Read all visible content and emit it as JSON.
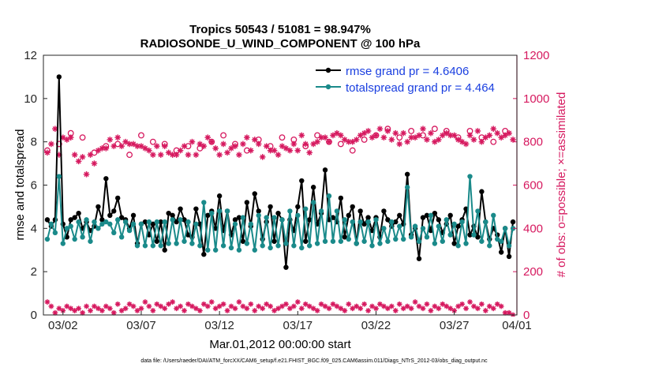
{
  "chart_data": {
    "type": "line",
    "title": "Tropics 50543 / 51081 = 98.947%",
    "subtitle": "RADIOSONDE_U_WIND_COMPONENT @ 100 hPa",
    "xlabel": "Mar.01,2012 00:00:00 start",
    "ylabel": "rmse and totalspread",
    "y2label": "# of obs: o=possible; ×=assimilated",
    "footer": "data file: /Users/raeder/DAI/ATM_forcXX/CAM6_setup/f.e21.FHIST_BGC.f09_025.CAM6assim.011/Diags_NTrS_2012-03/obs_diag_output.nc",
    "xlim": [
      0.75,
      31.0
    ],
    "ylim": [
      0,
      12
    ],
    "y2lim": [
      0,
      1200
    ],
    "xtick_positions": [
      2,
      7,
      12,
      17,
      22,
      27,
      32
    ],
    "xtick_labels": [
      "03/02",
      "03/07",
      "03/12",
      "03/17",
      "03/22",
      "03/27",
      "04/01"
    ],
    "ytick_labels": [
      "0",
      "2",
      "4",
      "6",
      "8",
      "10",
      "12"
    ],
    "y2tick_labels": [
      "0",
      "200",
      "400",
      "600",
      "800",
      "1000",
      "1200"
    ],
    "legend": [
      "rmse grand pr = 4.6406",
      "totalspread grand pr = 4.464"
    ],
    "colors": {
      "rmse": "#000000",
      "spread": "#1a8a8a",
      "obs": "#d6195f",
      "legend_text": "#1a3fe0"
    },
    "series": [
      {
        "name": "rmse",
        "x": [
          1.0,
          1.25,
          1.5,
          1.75,
          2.0,
          2.25,
          2.5,
          2.75,
          3.0,
          3.25,
          3.5,
          3.75,
          4.0,
          4.25,
          4.5,
          4.75,
          5.0,
          5.25,
          5.5,
          5.75,
          6.0,
          6.25,
          6.5,
          6.75,
          7.0,
          7.25,
          7.5,
          7.75,
          8.0,
          8.25,
          8.5,
          8.75,
          9.0,
          9.25,
          9.5,
          9.75,
          10.0,
          10.25,
          10.5,
          10.75,
          11.0,
          11.25,
          11.5,
          11.75,
          12.0,
          12.25,
          12.5,
          12.75,
          13.0,
          13.25,
          13.5,
          13.75,
          14.0,
          14.25,
          14.5,
          14.75,
          15.0,
          15.25,
          15.5,
          15.75,
          16.0,
          16.25,
          16.5,
          16.75,
          17.0,
          17.25,
          17.5,
          17.75,
          18.0,
          18.25,
          18.5,
          18.75,
          19.0,
          19.25,
          19.5,
          19.75,
          20.0,
          20.25,
          20.5,
          20.75,
          21.0,
          21.25,
          21.5,
          21.75,
          22.0,
          22.25,
          22.5,
          22.75,
          23.0,
          23.25,
          23.5,
          23.75,
          24.0,
          24.25,
          24.5,
          24.75,
          25.0,
          25.25,
          25.5,
          25.75,
          26.0,
          26.25,
          26.5,
          26.75,
          27.0,
          27.25,
          27.5,
          27.75,
          28.0,
          28.25,
          28.5,
          28.75,
          29.0,
          29.25,
          29.5,
          29.75,
          30.0,
          30.25,
          30.5,
          30.75
        ],
        "values": [
          4.4,
          4.1,
          4.4,
          11.0,
          4.2,
          3.6,
          4.4,
          4.5,
          4.7,
          4.0,
          4.3,
          3.9,
          4.1,
          5.0,
          4.4,
          6.3,
          4.6,
          4.8,
          5.4,
          4.5,
          4.4,
          4.0,
          4.6,
          3.3,
          4.2,
          4.3,
          3.7,
          4.2,
          3.4,
          4.3,
          3.0,
          4.7,
          4.6,
          4.3,
          4.9,
          4.4,
          3.7,
          3.6,
          4.9,
          4.2,
          2.8,
          4.6,
          4.8,
          4.0,
          5.5,
          3.9,
          4.8,
          3.7,
          4.4,
          4.5,
          3.4,
          5.2,
          4.1,
          5.6,
          4.8,
          3.5,
          4.3,
          5.0,
          3.4,
          4.7,
          4.4,
          2.2,
          4.4,
          3.9,
          5.0,
          6.2,
          3.4,
          4.4,
          5.9,
          4.2,
          4.7,
          6.7,
          4.4,
          4.5,
          4.3,
          5.4,
          3.6,
          4.6,
          5.0,
          3.3,
          4.8,
          4.2,
          4.5,
          3.9,
          4.5,
          3.6,
          4.8,
          4.4,
          4.1,
          4.3,
          4.6,
          4.2,
          6.5,
          3.7,
          4.0,
          2.6,
          4.5,
          4.6,
          3.9,
          4.7,
          4.4,
          3.8,
          4.2,
          4.6,
          3.3,
          4.1,
          4.4,
          4.9,
          3.7,
          4.1,
          3.6,
          5.7,
          4.3,
          3.5,
          4.0,
          3.7,
          2.9,
          4.0,
          2.7,
          4.3
        ]
      },
      {
        "name": "totalspread",
        "x": [
          1.0,
          1.25,
          1.5,
          1.75,
          2.0,
          2.25,
          2.5,
          2.75,
          3.0,
          3.25,
          3.5,
          3.75,
          4.0,
          4.25,
          4.5,
          4.75,
          5.0,
          5.25,
          5.5,
          5.75,
          6.0,
          6.25,
          6.5,
          6.75,
          7.0,
          7.25,
          7.5,
          7.75,
          8.0,
          8.25,
          8.5,
          8.75,
          9.0,
          9.25,
          9.5,
          9.75,
          10.0,
          10.25,
          10.5,
          10.75,
          11.0,
          11.25,
          11.5,
          11.75,
          12.0,
          12.25,
          12.5,
          12.75,
          13.0,
          13.25,
          13.5,
          13.75,
          14.0,
          14.25,
          14.5,
          14.75,
          15.0,
          15.25,
          15.5,
          15.75,
          16.0,
          16.25,
          16.5,
          16.75,
          17.0,
          17.25,
          17.5,
          17.75,
          18.0,
          18.25,
          18.5,
          18.75,
          19.0,
          19.25,
          19.5,
          19.75,
          20.0,
          20.25,
          20.5,
          20.75,
          21.0,
          21.25,
          21.5,
          21.75,
          22.0,
          22.25,
          22.5,
          22.75,
          23.0,
          23.25,
          23.5,
          23.75,
          24.0,
          24.25,
          24.5,
          24.75,
          25.0,
          25.25,
          25.5,
          25.75,
          26.0,
          26.25,
          26.5,
          26.75,
          27.0,
          27.25,
          27.5,
          27.75,
          28.0,
          28.25,
          28.5,
          28.75,
          29.0,
          29.25,
          29.5,
          29.75,
          30.0,
          30.25,
          30.5,
          30.75
        ],
        "values": [
          3.5,
          4.2,
          3.8,
          6.4,
          3.3,
          4.0,
          4.1,
          3.5,
          4.3,
          3.6,
          4.4,
          3.4,
          4.3,
          4.0,
          4.2,
          4.3,
          4.2,
          3.8,
          4.4,
          3.6,
          4.3,
          3.9,
          4.2,
          3.2,
          4.2,
          3.2,
          4.3,
          3.2,
          4.3,
          3.2,
          4.3,
          3.3,
          4.4,
          3.3,
          4.4,
          3.4,
          4.3,
          3.3,
          4.2,
          3.2,
          5.2,
          3.0,
          4.7,
          3.0,
          4.8,
          3.2,
          4.8,
          3.1,
          4.2,
          3.0,
          4.5,
          3.3,
          4.2,
          3.0,
          4.6,
          3.2,
          4.5,
          3.1,
          4.5,
          3.2,
          4.4,
          3.3,
          4.8,
          3.2,
          4.6,
          3.1,
          4.9,
          3.2,
          5.2,
          3.3,
          4.8,
          3.4,
          5.5,
          3.4,
          4.8,
          3.4,
          4.4,
          3.5,
          4.3,
          3.3,
          4.3,
          3.4,
          4.3,
          3.2,
          4.4,
          3.3,
          4.0,
          3.4,
          4.3,
          3.5,
          4.1,
          3.5,
          5.9,
          3.6,
          4.1,
          3.4,
          4.0,
          3.6,
          4.6,
          3.3,
          4.1,
          3.4,
          4.4,
          3.7,
          4.2,
          3.2,
          4.3,
          3.3,
          6.4,
          3.7,
          4.8,
          3.4,
          4.3,
          3.2,
          4.6,
          3.5,
          3.4,
          4.0,
          3.2,
          4.0
        ]
      },
      {
        "name": "obs possible",
        "x": [
          1.0,
          1.75,
          2.5,
          3.25,
          4.0,
          4.75,
          5.5,
          6.25,
          7.0,
          7.75,
          8.5,
          9.25,
          10.0,
          10.75,
          11.5,
          12.25,
          13.0,
          13.75,
          14.5,
          15.25,
          16.0,
          16.75,
          17.5,
          18.25,
          19.0,
          19.75,
          20.5,
          21.25,
          22.0,
          22.75,
          23.5,
          24.25,
          25.0,
          25.75,
          26.5,
          27.25,
          28.0,
          28.75,
          29.5,
          30.25
        ],
        "values": [
          760,
          790,
          840,
          820,
          750,
          780,
          790,
          740,
          830,
          800,
          790,
          760,
          780,
          770,
          800,
          830,
          790,
          760,
          810,
          780,
          820,
          810,
          780,
          830,
          800,
          790,
          760,
          810,
          830,
          860,
          820,
          850,
          830,
          860,
          850,
          820,
          850,
          820,
          800,
          850
        ]
      },
      {
        "name": "obs assimilated",
        "x": [
          1.0,
          1.25,
          1.5,
          1.75,
          2.0,
          2.25,
          2.5,
          2.75,
          3.0,
          3.25,
          3.5,
          3.75,
          4.0,
          4.25,
          4.5,
          4.75,
          5.0,
          5.25,
          5.5,
          5.75,
          6.0,
          6.25,
          6.5,
          6.75,
          7.0,
          7.25,
          7.5,
          7.75,
          8.0,
          8.25,
          8.5,
          8.75,
          9.0,
          9.25,
          9.5,
          9.75,
          10.0,
          10.25,
          10.5,
          10.75,
          11.0,
          11.25,
          11.5,
          11.75,
          12.0,
          12.25,
          12.5,
          12.75,
          13.0,
          13.25,
          13.5,
          13.75,
          14.0,
          14.25,
          14.5,
          14.75,
          15.0,
          15.25,
          15.5,
          15.75,
          16.0,
          16.25,
          16.5,
          16.75,
          17.0,
          17.25,
          17.5,
          17.75,
          18.0,
          18.25,
          18.5,
          18.75,
          19.0,
          19.25,
          19.5,
          19.75,
          20.0,
          20.25,
          20.5,
          20.75,
          21.0,
          21.25,
          21.5,
          21.75,
          22.0,
          22.25,
          22.5,
          22.75,
          23.0,
          23.25,
          23.5,
          23.75,
          24.0,
          24.25,
          24.5,
          24.75,
          25.0,
          25.25,
          25.5,
          25.75,
          26.0,
          26.25,
          26.5,
          26.75,
          27.0,
          27.25,
          27.5,
          27.75,
          28.0,
          28.25,
          28.5,
          28.75,
          29.0,
          29.25,
          29.5,
          29.75,
          30.0,
          30.25,
          30.5,
          30.75
        ],
        "values": [
          750,
          790,
          860,
          740,
          820,
          810,
          820,
          740,
          710,
          730,
          650,
          740,
          700,
          760,
          770,
          770,
          810,
          780,
          820,
          780,
          800,
          790,
          790,
          780,
          780,
          770,
          760,
          740,
          780,
          740,
          780,
          750,
          740,
          740,
          760,
          780,
          740,
          800,
          740,
          790,
          780,
          820,
          800,
          770,
          740,
          790,
          750,
          770,
          780,
          740,
          790,
          820,
          760,
          810,
          790,
          730,
          780,
          760,
          760,
          740,
          780,
          770,
          760,
          790,
          760,
          830,
          790,
          750,
          790,
          800,
          820,
          820,
          800,
          830,
          840,
          830,
          810,
          800,
          800,
          810,
          830,
          840,
          850,
          820,
          830,
          860,
          820,
          850,
          810,
          840,
          790,
          840,
          800,
          820,
          820,
          830,
          860,
          810,
          840,
          800,
          810,
          830,
          840,
          830,
          830,
          810,
          800,
          790,
          830,
          810,
          850,
          800,
          820,
          830,
          860,
          840,
          820,
          830,
          840,
          810
        ]
      },
      {
        "name": "obs rejected bottom",
        "x": [
          1.0,
          1.25,
          1.5,
          1.75,
          2.0,
          2.25,
          2.5,
          2.75,
          3.0,
          3.25,
          3.5,
          3.75,
          4.0,
          4.25,
          4.5,
          4.75,
          5.0,
          5.25,
          5.5,
          5.75,
          6.0,
          6.25,
          6.5,
          6.75,
          7.0,
          7.25,
          7.5,
          7.75,
          8.0,
          8.25,
          8.5,
          8.75,
          9.0,
          9.25,
          9.5,
          9.75,
          10.0,
          10.25,
          10.5,
          10.75,
          11.0,
          11.25,
          11.5,
          11.75,
          12.0,
          12.25,
          12.5,
          12.75,
          13.0,
          13.25,
          13.5,
          13.75,
          14.0,
          14.25,
          14.5,
          14.75,
          15.0,
          15.25,
          15.5,
          15.75,
          16.0,
          16.25,
          16.5,
          16.75,
          17.0,
          17.25,
          17.5,
          17.75,
          18.0,
          18.25,
          18.5,
          18.75,
          19.0,
          19.25,
          19.5,
          19.75,
          20.0,
          20.25,
          20.5,
          20.75,
          21.0,
          21.25,
          21.5,
          21.75,
          22.0,
          22.25,
          22.5,
          22.75,
          23.0,
          23.25,
          23.5,
          23.75,
          24.0,
          24.25,
          24.5,
          24.75,
          25.0,
          25.25,
          25.5,
          25.75,
          26.0,
          26.25,
          26.5,
          26.75,
          27.0,
          27.25,
          27.5,
          27.75,
          28.0,
          28.25,
          28.5,
          28.75,
          29.0,
          29.25,
          29.5,
          29.75,
          30.0,
          30.25,
          30.5,
          30.75
        ],
        "values": [
          60,
          40,
          10,
          30,
          20,
          40,
          30,
          20,
          30,
          10,
          40,
          20,
          40,
          30,
          20,
          40,
          30,
          10,
          50,
          20,
          30,
          50,
          40,
          20,
          30,
          60,
          40,
          20,
          50,
          40,
          30,
          50,
          60,
          30,
          40,
          20,
          50,
          40,
          30,
          20,
          50,
          40,
          60,
          30,
          40,
          50,
          20,
          40,
          30,
          60,
          40,
          30,
          50,
          20,
          40,
          30,
          50,
          40,
          20,
          30,
          40,
          50,
          30,
          40,
          60,
          30,
          50,
          40,
          30,
          20,
          50,
          40,
          30,
          50,
          40,
          30,
          20,
          50,
          30,
          40,
          30,
          50,
          20,
          40,
          30,
          50,
          40,
          30,
          40,
          20,
          50,
          30,
          40,
          30,
          60,
          40,
          30,
          50,
          20,
          40,
          30,
          50,
          40,
          30,
          20,
          40,
          50,
          30,
          60,
          40,
          30,
          50,
          20,
          40,
          30,
          50,
          40,
          10,
          10,
          0
        ]
      }
    ]
  }
}
